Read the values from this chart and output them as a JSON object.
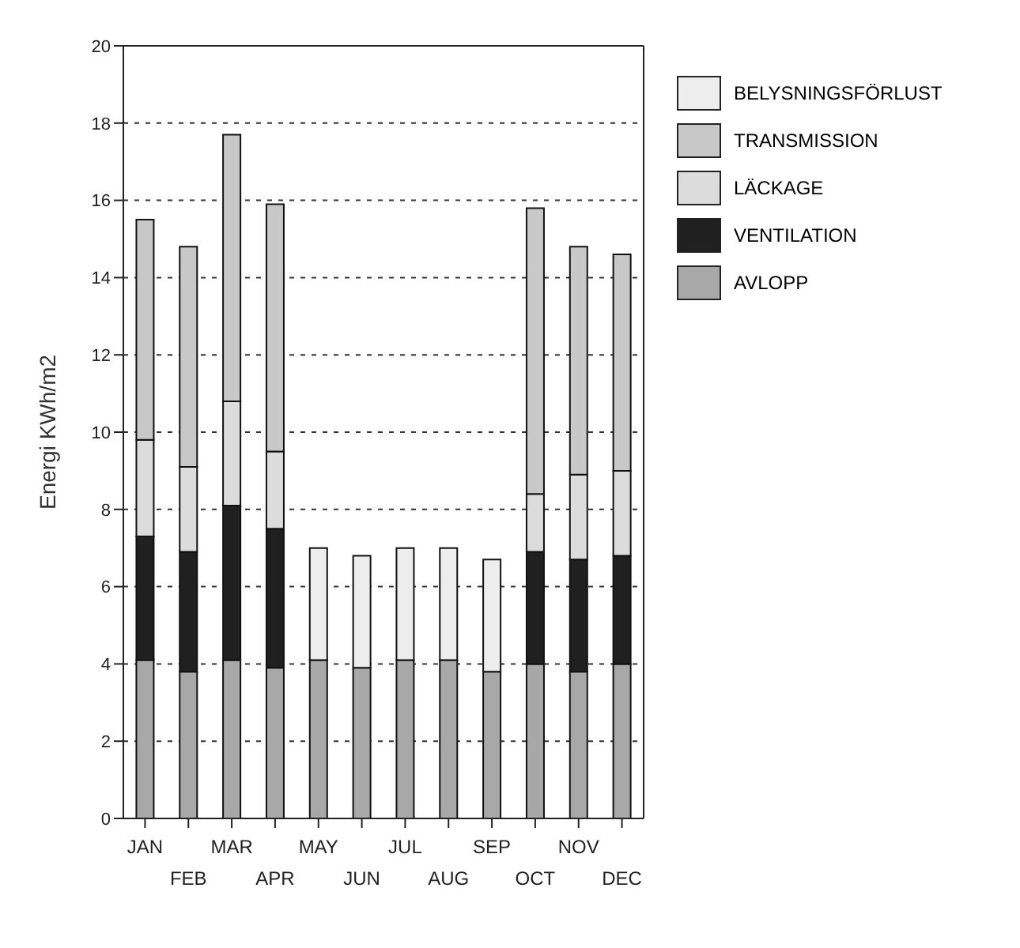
{
  "chart_data": {
    "type": "bar",
    "stacked": true,
    "ylabel": "Energi KWh/m2",
    "categories": [
      "JAN",
      "FEB",
      "MAR",
      "APR",
      "MAY",
      "JUN",
      "JUL",
      "AUG",
      "SEP",
      "OCT",
      "NOV",
      "DEC"
    ],
    "series": [
      {
        "name": "AVLOPP",
        "color": "#a8a8a8",
        "values": [
          4.1,
          3.8,
          4.1,
          3.9,
          4.1,
          3.9,
          4.1,
          4.1,
          3.8,
          4.0,
          3.8,
          4.0
        ]
      },
      {
        "name": "VENTILATION",
        "color": "#202020",
        "values": [
          3.2,
          3.1,
          4.0,
          3.6,
          null,
          null,
          null,
          null,
          null,
          2.9,
          2.9,
          2.8
        ]
      },
      {
        "name": "LÄCKAGE",
        "color": "#dcdcdc",
        "values": [
          2.5,
          2.2,
          2.7,
          2.0,
          null,
          null,
          null,
          null,
          null,
          1.5,
          2.2,
          2.2
        ]
      },
      {
        "name": "TRANSMISSION",
        "color": "#c8c8c8",
        "values": [
          5.7,
          5.7,
          6.9,
          6.4,
          null,
          null,
          null,
          null,
          null,
          7.4,
          5.9,
          5.6
        ]
      },
      {
        "name": "BELYSNINGSFÖRLUST",
        "color": "#ededed",
        "values": [
          null,
          null,
          null,
          null,
          2.9,
          2.9,
          2.9,
          2.9,
          2.9,
          null,
          null,
          null
        ]
      }
    ],
    "ylim": [
      0,
      20
    ],
    "yticks": [
      0,
      2,
      4,
      6,
      8,
      10,
      12,
      14,
      16,
      18,
      20
    ],
    "grid": "y",
    "legend": "right"
  }
}
